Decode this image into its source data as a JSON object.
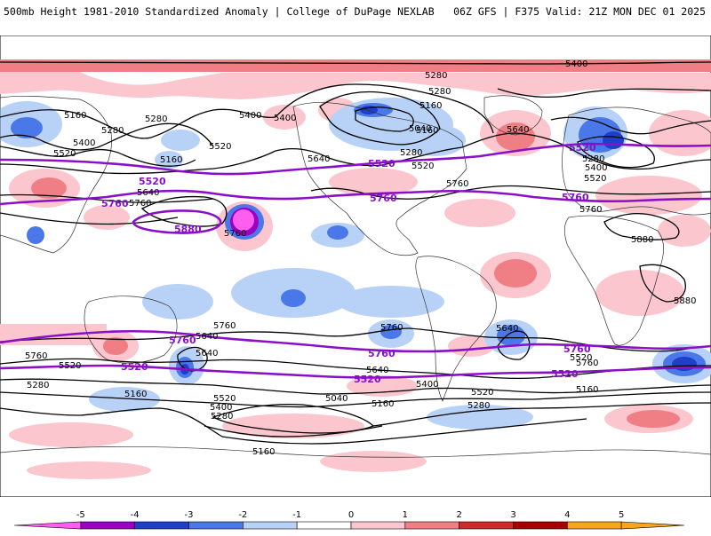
{
  "header": {
    "title": "500mb Height 1981-2010 Standardized Anomaly | College of DuPage NEXLAB",
    "valid": "06Z GFS | F375 Valid: 21Z MON DEC 01 2025"
  },
  "colors": {
    "contour": "#000000",
    "highlight": "#8a0fc7",
    "neg5": "#ff5cf0",
    "neg4": "#9b00c2",
    "neg3": "#1f3fc8",
    "neg2": "#4a78e8",
    "neg1": "#b7d1f7",
    "pos1": "#fbc6cd",
    "pos2": "#ef7f84",
    "pos3": "#cf2a2a",
    "pos4": "#a80000",
    "pos5": "#f7a51b"
  },
  "contour_labels": [
    {
      "id": "c1",
      "text": "5400"
    },
    {
      "id": "c2",
      "text": "5280"
    },
    {
      "id": "c3",
      "text": "5160"
    },
    {
      "id": "c4",
      "text": "5280"
    },
    {
      "id": "c5",
      "text": "5160"
    },
    {
      "id": "c6",
      "text": "5280"
    },
    {
      "id": "c7",
      "text": "5400"
    },
    {
      "id": "c8",
      "text": "5400"
    },
    {
      "id": "c9",
      "text": "5400"
    },
    {
      "id": "c10",
      "text": "5520"
    },
    {
      "id": "c11",
      "text": "5520"
    },
    {
      "id": "c12",
      "text": "5160"
    },
    {
      "id": "c13",
      "text": "5160"
    },
    {
      "id": "c14",
      "text": "5040"
    },
    {
      "id": "c15",
      "text": "5280"
    },
    {
      "id": "c16",
      "text": "5640"
    },
    {
      "id": "c17",
      "text": "5280"
    },
    {
      "id": "c18",
      "text": "5520"
    },
    {
      "id": "c19",
      "text": "5640"
    },
    {
      "id": "c20",
      "text": "5760"
    },
    {
      "id": "c21",
      "text": "5760"
    },
    {
      "id": "c22",
      "text": "5640"
    },
    {
      "id": "c23",
      "text": "5760"
    },
    {
      "id": "c24",
      "text": "5400"
    },
    {
      "id": "c25",
      "text": "5280"
    },
    {
      "id": "c26",
      "text": "5520"
    },
    {
      "id": "c27",
      "text": "5760"
    },
    {
      "id": "c28",
      "text": "5880"
    },
    {
      "id": "c29",
      "text": "5880"
    },
    {
      "id": "c30",
      "text": "5760"
    },
    {
      "id": "c31",
      "text": "5640"
    },
    {
      "id": "c32",
      "text": "5760"
    },
    {
      "id": "c33",
      "text": "5640"
    },
    {
      "id": "c34",
      "text": "5760"
    },
    {
      "id": "c35",
      "text": "5520"
    },
    {
      "id": "c36",
      "text": "5640"
    },
    {
      "id": "c37",
      "text": "5400"
    },
    {
      "id": "c38",
      "text": "5520"
    },
    {
      "id": "c39",
      "text": "5760"
    },
    {
      "id": "c40",
      "text": "5520"
    },
    {
      "id": "c41",
      "text": "5280"
    },
    {
      "id": "c42",
      "text": "5160"
    },
    {
      "id": "c43",
      "text": "5520"
    },
    {
      "id": "c44",
      "text": "5400"
    },
    {
      "id": "c45",
      "text": "5280"
    },
    {
      "id": "c46",
      "text": "5040"
    },
    {
      "id": "c47",
      "text": "5160"
    },
    {
      "id": "c48",
      "text": "5280"
    },
    {
      "id": "c49",
      "text": "5160"
    },
    {
      "id": "c50",
      "text": "5160"
    },
    {
      "id": "c51",
      "text": "5640"
    }
  ],
  "highlight_labels": [
    {
      "id": "h1",
      "text": "5520"
    },
    {
      "id": "h2",
      "text": "5520"
    },
    {
      "id": "h3",
      "text": "5520"
    },
    {
      "id": "h4",
      "text": "5760"
    },
    {
      "id": "h5",
      "text": "5760"
    },
    {
      "id": "h6",
      "text": "5760"
    },
    {
      "id": "h7",
      "text": "5880"
    },
    {
      "id": "h8",
      "text": "5760"
    },
    {
      "id": "h9",
      "text": "5760"
    },
    {
      "id": "h10",
      "text": "5760"
    },
    {
      "id": "h11",
      "text": "5520"
    },
    {
      "id": "h12",
      "text": "5520"
    },
    {
      "id": "h13",
      "text": "5520"
    }
  ],
  "colorbar": {
    "ticks": [
      "-5",
      "-4",
      "-3",
      "-2",
      "-1",
      "0",
      "1",
      "2",
      "3",
      "4",
      "5"
    ]
  }
}
